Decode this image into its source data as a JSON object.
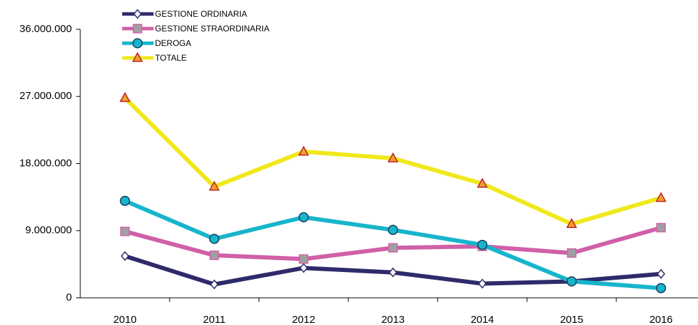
{
  "chart_data": {
    "type": "line",
    "categories": [
      "2010",
      "2011",
      "2012",
      "2013",
      "2014",
      "2015",
      "2016"
    ],
    "series": [
      {
        "name": "GESTIONE ORDINARIA",
        "color": "#2e2a6b",
        "marker": "diamond",
        "marker_fill": "#ffffff",
        "marker_stroke": "#2e2a6b",
        "values": [
          5600000,
          1800000,
          4000000,
          3400000,
          1900000,
          2200000,
          3200000
        ]
      },
      {
        "name": "GESTIONE STRAORDINARIA",
        "color": "#d060a8",
        "marker": "square",
        "marker_fill": "#a0a0a0",
        "marker_stroke": "#d060a8",
        "values": [
          8900000,
          5700000,
          5200000,
          6700000,
          6900000,
          6000000,
          9400000
        ]
      },
      {
        "name": "DEROGA",
        "color": "#17b5cc",
        "marker": "circle",
        "marker_fill": "#17b5cc",
        "marker_stroke": "#1a3a5a",
        "values": [
          13000000,
          7900000,
          10800000,
          9100000,
          7100000,
          2200000,
          1300000
        ]
      },
      {
        "name": "TOTALE",
        "color": "#f0e81c",
        "marker": "triangle",
        "marker_fill": "#f0a030",
        "marker_stroke": "#c02020",
        "values": [
          26800000,
          14900000,
          19600000,
          18700000,
          15300000,
          9900000,
          13400000
        ]
      }
    ],
    "ylim": [
      0,
      36000000
    ],
    "yticks": [
      0,
      {
        "value": 9000000,
        "label": "9.000.000"
      },
      {
        "value": 18000000,
        "label": "18.000.000"
      },
      {
        "value": 27000000,
        "label": "27.000.000"
      },
      {
        "value": 36000000,
        "label": "36.000.000"
      }
    ],
    "grid": false,
    "legend": "top-left"
  }
}
